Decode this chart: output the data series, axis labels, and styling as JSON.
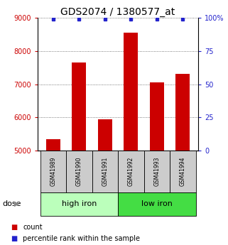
{
  "title": "GDS2074 / 1380577_at",
  "categories": [
    "GSM41989",
    "GSM41990",
    "GSM41991",
    "GSM41992",
    "GSM41993",
    "GSM41994"
  ],
  "counts": [
    5350,
    7650,
    5950,
    8550,
    7050,
    7300
  ],
  "percentile_ranks": [
    99,
    99,
    99,
    99,
    99,
    99
  ],
  "groups": [
    {
      "label": "high iron",
      "indices": [
        0,
        1,
        2
      ],
      "color": "#bbffbb"
    },
    {
      "label": "low iron",
      "indices": [
        3,
        4,
        5
      ],
      "color": "#44dd44"
    }
  ],
  "ylim_left": [
    5000,
    9000
  ],
  "ylim_right": [
    0,
    100
  ],
  "yticks_left": [
    5000,
    6000,
    7000,
    8000,
    9000
  ],
  "yticks_right": [
    0,
    25,
    50,
    75,
    100
  ],
  "bar_color": "#cc0000",
  "dot_color": "#2222cc",
  "left_tick_color": "#cc0000",
  "right_tick_color": "#2222cc",
  "sample_box_color": "#cccccc",
  "title_fontsize": 10,
  "axis_fontsize": 7,
  "tick_label_fontsize": 7,
  "sample_label_fontsize": 5.5,
  "group_label_fontsize": 8,
  "legend_fontsize": 7,
  "dose_label": "dose",
  "legend_count_label": "count",
  "legend_pct_label": "percentile rank within the sample"
}
